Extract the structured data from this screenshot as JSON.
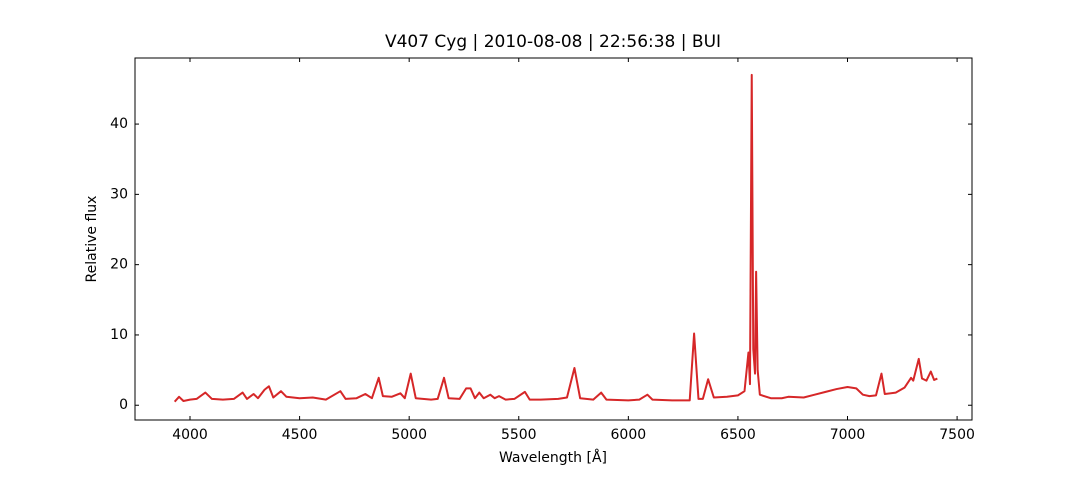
{
  "chart_data": {
    "type": "line",
    "title": "V407 Cyg | 2010-08-08 | 22:56:38 | BUI",
    "x_label": "Wavelength [Å]",
    "y_label": "Relative flux",
    "xlim": [
      3749,
      7568
    ],
    "ylim": [
      -2.1,
      49.4
    ],
    "xticks": [
      4000,
      4500,
      5000,
      5500,
      6000,
      6500,
      7000,
      7500
    ],
    "yticks": [
      0,
      10,
      20,
      30,
      40
    ],
    "series": [
      {
        "name": "V407 Cyg",
        "color": "#d62728",
        "x": [
          3930,
          3950,
          3970,
          4000,
          4030,
          4070,
          4100,
          4150,
          4200,
          4240,
          4260,
          4290,
          4310,
          4340,
          4360,
          4380,
          4415,
          4440,
          4500,
          4560,
          4620,
          4686,
          4710,
          4760,
          4800,
          4830,
          4861,
          4880,
          4920,
          4960,
          4980,
          5007,
          5030,
          5100,
          5130,
          5159,
          5180,
          5230,
          5260,
          5280,
          5300,
          5320,
          5340,
          5370,
          5390,
          5410,
          5440,
          5480,
          5528,
          5550,
          5600,
          5680,
          5720,
          5754,
          5780,
          5840,
          5876,
          5900,
          6000,
          6050,
          6087,
          6110,
          6200,
          6280,
          6300,
          6320,
          6340,
          6364,
          6390,
          6450,
          6500,
          6530,
          6548,
          6555,
          6563,
          6570,
          6578,
          6583,
          6590,
          6600,
          6650,
          6700,
          6730,
          6800,
          6850,
          6900,
          6950,
          7000,
          7040,
          7070,
          7100,
          7130,
          7155,
          7170,
          7220,
          7260,
          7290,
          7300,
          7325,
          7340,
          7360,
          7380,
          7395,
          7410
        ],
        "values": [
          0.5,
          1.2,
          0.6,
          0.8,
          0.9,
          1.8,
          0.9,
          0.8,
          0.9,
          1.8,
          0.9,
          1.6,
          1.0,
          2.2,
          2.7,
          1.1,
          2.0,
          1.2,
          1.0,
          1.1,
          0.8,
          2.0,
          0.9,
          1.0,
          1.6,
          1.0,
          3.9,
          1.3,
          1.2,
          1.7,
          1.0,
          4.5,
          1.0,
          0.8,
          0.9,
          3.9,
          1.0,
          0.9,
          2.4,
          2.4,
          1.0,
          1.8,
          1.0,
          1.5,
          1.0,
          1.3,
          0.8,
          0.9,
          1.9,
          0.8,
          0.8,
          0.9,
          1.1,
          5.3,
          1.0,
          0.8,
          1.8,
          0.8,
          0.7,
          0.8,
          1.5,
          0.8,
          0.7,
          0.7,
          10.2,
          0.9,
          0.9,
          3.7,
          1.1,
          1.2,
          1.4,
          2.0,
          7.5,
          3.0,
          47.0,
          8.0,
          4.5,
          19.0,
          5.0,
          1.5,
          1.0,
          1.0,
          1.2,
          1.1,
          1.5,
          1.9,
          2.3,
          2.6,
          2.4,
          1.5,
          1.3,
          1.4,
          4.5,
          1.6,
          1.8,
          2.5,
          3.9,
          3.5,
          6.6,
          3.8,
          3.5,
          4.8,
          3.6,
          3.8
        ]
      }
    ]
  }
}
